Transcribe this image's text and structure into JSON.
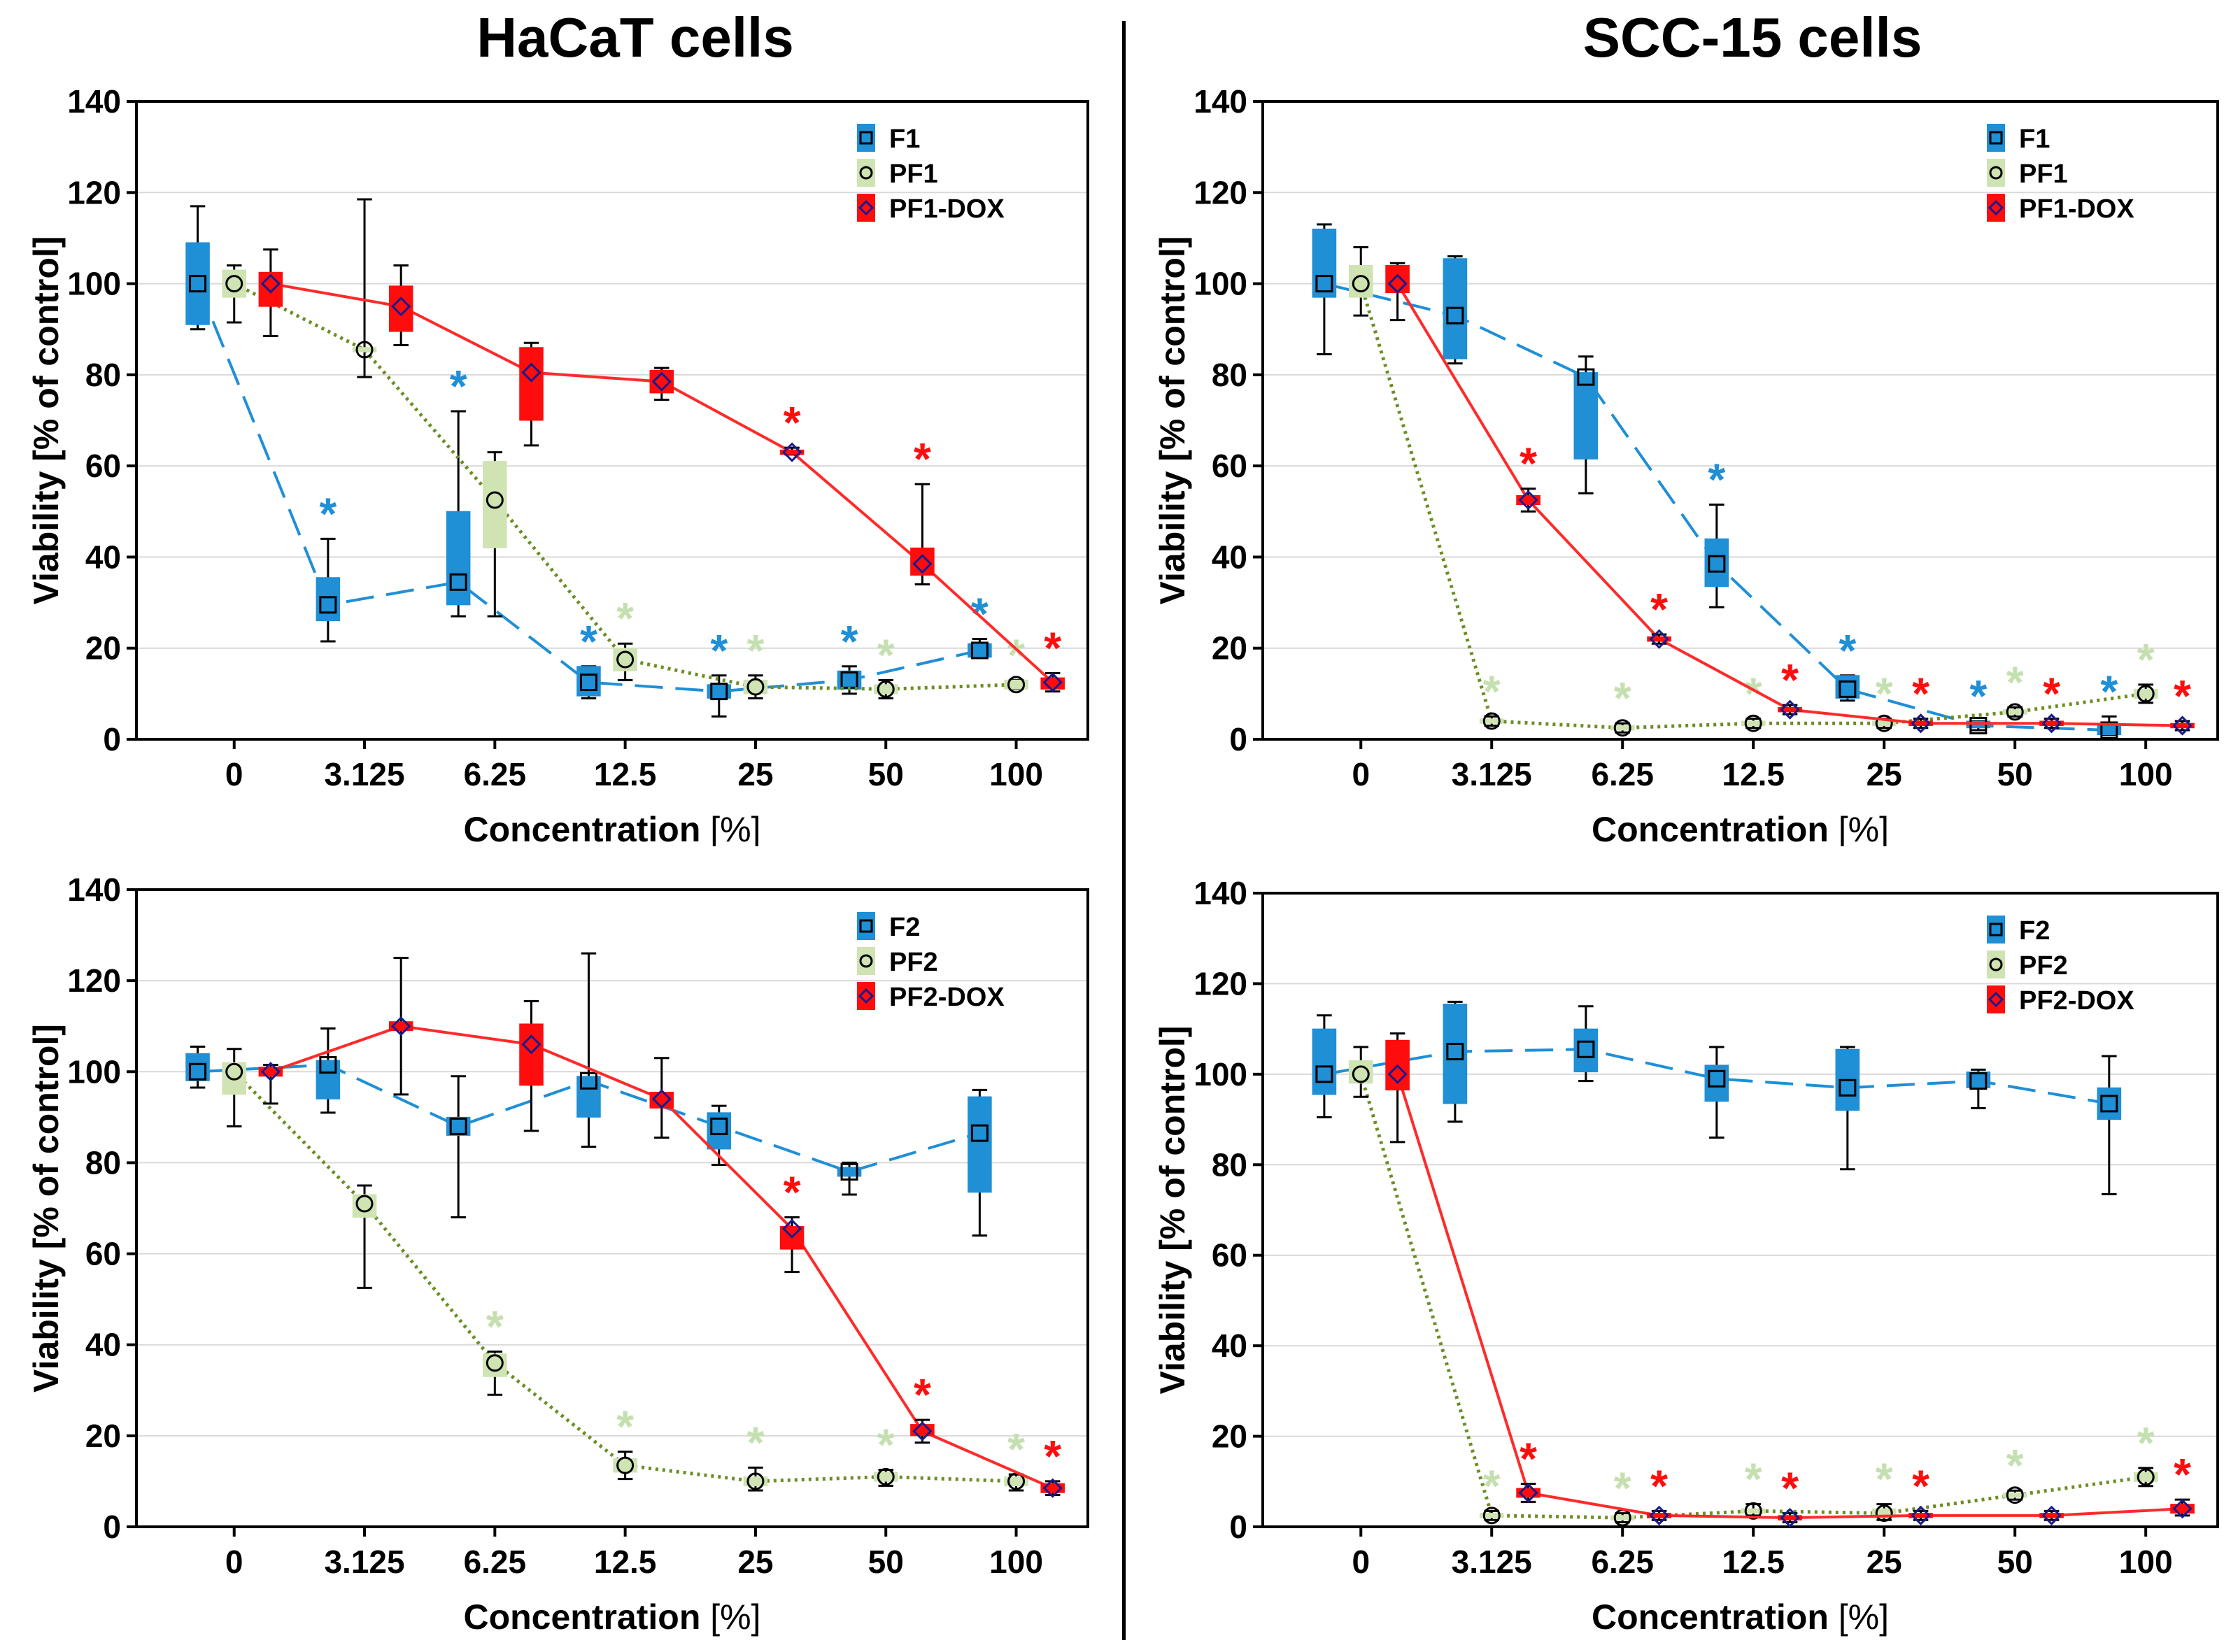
{
  "titles": {
    "left": "HaCaT cells",
    "right": "SCC-15 cells"
  },
  "colors": {
    "blue": "#1f8fd6",
    "light_green": "#cfe3b3",
    "green_marker_line": "#6b8e23",
    "red": "#ff0d0d",
    "red_line": "#ff2a2a",
    "star_green": "#c5e0b0",
    "dark_blue_marker": "#1a1a8c"
  },
  "chart_data": [
    {
      "type": "box",
      "panel": "HaCaT-top",
      "xlabel": "Concentration",
      "xunit": "[%]",
      "ylabel": "Viability [% of control]",
      "ylim": [
        0,
        140
      ],
      "yticks": [
        0,
        20,
        40,
        60,
        80,
        100,
        120,
        140
      ],
      "categories": [
        "0",
        "3.125",
        "6.25",
        "12.5",
        "25",
        "50",
        "100"
      ],
      "legend": [
        "F1",
        "PF1",
        "PF1-DOX"
      ],
      "series": [
        {
          "name": "F1",
          "style": "blue",
          "median": [
            100,
            29.5,
            34.5,
            12.5,
            10.5,
            13,
            19.5
          ],
          "q1": [
            91,
            26,
            29.5,
            9.5,
            9,
            11,
            18
          ],
          "q3": [
            109,
            35.5,
            50,
            16,
            12,
            15,
            21
          ],
          "min": [
            90,
            21.5,
            27,
            9,
            5,
            10,
            18
          ],
          "max": [
            117,
            44,
            72,
            16,
            14,
            16,
            22
          ],
          "star": [
            false,
            true,
            true,
            true,
            true,
            true,
            true
          ]
        },
        {
          "name": "PF1",
          "style": "green",
          "median": [
            100,
            85.5,
            52.5,
            17.5,
            11.5,
            11,
            12
          ],
          "q1": [
            97,
            85,
            42,
            15,
            10,
            10,
            11
          ],
          "q3": [
            103,
            86,
            61,
            20,
            13,
            12,
            13
          ],
          "min": [
            91.5,
            79.5,
            27,
            13,
            9,
            9,
            11
          ],
          "max": [
            104,
            118.5,
            63,
            21,
            14,
            13,
            13
          ],
          "star": [
            false,
            false,
            false,
            true,
            true,
            true,
            true
          ]
        },
        {
          "name": "PF1-DOX",
          "style": "red",
          "median": [
            100,
            95,
            80.5,
            78.5,
            63,
            38.5,
            12.5
          ],
          "q1": [
            95,
            89.5,
            70,
            76,
            62.5,
            36,
            11
          ],
          "q3": [
            102.5,
            99.5,
            86,
            81,
            63.5,
            42,
            13.5
          ],
          "min": [
            88.5,
            86.5,
            64.5,
            74.5,
            62.5,
            34,
            10.5
          ],
          "max": [
            107.5,
            104,
            87,
            81.5,
            64,
            56,
            14.5
          ],
          "star": [
            false,
            false,
            false,
            false,
            true,
            true,
            true
          ]
        }
      ]
    },
    {
      "type": "box",
      "panel": "SCC15-top",
      "xlabel": "Concentration",
      "xunit": "[%]",
      "ylabel": "Viability [% of control]",
      "ylim": [
        0,
        140
      ],
      "yticks": [
        0,
        20,
        40,
        60,
        80,
        100,
        120,
        140
      ],
      "categories": [
        "0",
        "3.125",
        "6.25",
        "12.5",
        "25",
        "50",
        "100"
      ],
      "legend": [
        "F1",
        "PF1",
        "PF1-DOX"
      ],
      "series": [
        {
          "name": "F1",
          "style": "blue",
          "median": [
            100,
            93,
            79.5,
            38.5,
            11,
            3,
            2
          ],
          "q1": [
            97,
            83.5,
            61.5,
            33.5,
            9,
            2.5,
            1
          ],
          "q3": [
            112,
            105.5,
            80.5,
            44,
            14,
            4,
            3
          ],
          "min": [
            84.5,
            82.5,
            54,
            29,
            8.5,
            2,
            1
          ],
          "max": [
            113,
            106,
            84,
            51.5,
            14,
            4,
            5
          ],
          "star": [
            false,
            false,
            false,
            true,
            true,
            true,
            true
          ]
        },
        {
          "name": "PF1",
          "style": "green",
          "median": [
            100,
            4,
            2.5,
            3.5,
            3.5,
            6,
            10
          ],
          "q1": [
            97,
            3.5,
            2,
            3,
            3,
            5.5,
            9
          ],
          "q3": [
            104,
            4.5,
            3,
            4,
            4,
            6.5,
            11
          ],
          "min": [
            93,
            3,
            1.5,
            2.5,
            2.5,
            5,
            8
          ],
          "max": [
            108,
            5,
            3.5,
            4.5,
            4.5,
            7,
            12
          ],
          "star": [
            false,
            true,
            true,
            true,
            true,
            true,
            true
          ]
        },
        {
          "name": "PF1-DOX",
          "style": "red",
          "median": [
            100,
            52.5,
            22,
            6.5,
            3.5,
            3.5,
            3
          ],
          "q1": [
            98,
            51.5,
            21.5,
            6,
            3,
            3,
            2.5
          ],
          "q3": [
            104,
            53.5,
            22.5,
            7,
            4,
            4,
            3.5
          ],
          "min": [
            92,
            50,
            21,
            5.5,
            2.5,
            2.5,
            2
          ],
          "max": [
            104.5,
            55,
            23,
            7.5,
            4.5,
            4.5,
            4
          ],
          "star": [
            false,
            true,
            true,
            true,
            true,
            true,
            true
          ]
        }
      ]
    },
    {
      "type": "box",
      "panel": "HaCaT-bottom",
      "xlabel": "Concentration",
      "xunit": "[%]",
      "ylabel": "Viability [% of control]",
      "ylim": [
        0,
        140
      ],
      "yticks": [
        0,
        20,
        40,
        60,
        80,
        100,
        120,
        140
      ],
      "categories": [
        "0",
        "3.125",
        "6.25",
        "12.5",
        "25",
        "50",
        "100"
      ],
      "legend": [
        "F2",
        "PF2",
        "PF2-DOX"
      ],
      "series": [
        {
          "name": "F2",
          "style": "blue",
          "median": [
            100,
            101.5,
            88,
            98,
            88,
            78,
            86.5
          ],
          "q1": [
            98,
            94,
            86,
            90,
            83,
            77,
            73.5
          ],
          "q3": [
            104,
            102.5,
            90,
            99,
            91,
            79,
            94.5
          ],
          "min": [
            96.5,
            91,
            68,
            83.5,
            79.5,
            73,
            64
          ],
          "max": [
            105.5,
            109.5,
            99,
            126,
            92.5,
            80,
            96
          ],
          "star": [
            false,
            false,
            false,
            false,
            false,
            false,
            false
          ]
        },
        {
          "name": "PF2",
          "style": "green",
          "median": [
            100,
            71,
            36,
            13.5,
            10,
            11,
            10
          ],
          "q1": [
            95,
            68,
            33,
            12,
            9,
            10,
            9
          ],
          "q3": [
            102,
            73,
            38,
            15,
            11,
            12,
            11
          ],
          "min": [
            88,
            52.5,
            29,
            10.5,
            8,
            9,
            8
          ],
          "max": [
            105,
            75,
            38.5,
            16.5,
            13,
            12.5,
            11.5
          ],
          "star": [
            false,
            false,
            true,
            true,
            true,
            true,
            true
          ]
        },
        {
          "name": "PF2-DOX",
          "style": "red",
          "median": [
            100,
            110,
            106,
            94,
            65.5,
            21,
            8.5
          ],
          "q1": [
            99,
            109,
            97,
            92,
            61,
            20,
            7.5
          ],
          "q3": [
            101,
            111,
            110.5,
            95.5,
            66,
            22.5,
            9.5
          ],
          "min": [
            93,
            95,
            87,
            85.5,
            56,
            18.5,
            7
          ],
          "max": [
            101.5,
            125,
            115.5,
            103,
            68,
            23.5,
            10
          ],
          "star": [
            false,
            false,
            false,
            false,
            true,
            true,
            true
          ]
        }
      ]
    },
    {
      "type": "box",
      "panel": "SCC15-bottom",
      "xlabel": "Concentration",
      "xunit": "[%]",
      "ylabel": "Viability [% of control]",
      "ylim": [
        0,
        140
      ],
      "yticks": [
        0,
        20,
        40,
        60,
        80,
        100,
        120,
        140
      ],
      "categories": [
        "0",
        "3.125",
        "6.25",
        "12.5",
        "25",
        "50",
        "100"
      ],
      "legend": [
        "F2",
        "PF2",
        "PF2-DOX"
      ],
      "series": [
        {
          "name": "F2",
          "style": "blue",
          "median": [
            100,
            105,
            105.5,
            99,
            97,
            98.5,
            93.5
          ],
          "q1": [
            95.5,
            93.5,
            100.5,
            94,
            92,
            97,
            90
          ],
          "q3": [
            110,
            115.5,
            110,
            102,
            105.5,
            100.5,
            97
          ],
          "min": [
            90.5,
            89.5,
            98.5,
            86,
            79,
            92.5,
            73.5
          ],
          "max": [
            113,
            116,
            115,
            106,
            106,
            101,
            104
          ],
          "star": [
            false,
            false,
            false,
            false,
            false,
            false,
            false
          ]
        },
        {
          "name": "PF2",
          "style": "green",
          "median": [
            100,
            2.5,
            2,
            3.5,
            3,
            7,
            11
          ],
          "q1": [
            98,
            2,
            1.5,
            3,
            2,
            6.5,
            10
          ],
          "q3": [
            103,
            3,
            2.5,
            4,
            4,
            7.5,
            12
          ],
          "min": [
            95,
            1.5,
            1,
            2.5,
            1.5,
            6,
            9
          ],
          "max": [
            106,
            3.5,
            3,
            5,
            5,
            8,
            13
          ],
          "star": [
            false,
            true,
            true,
            true,
            true,
            true,
            true
          ]
        },
        {
          "name": "PF2-DOX",
          "style": "red",
          "median": [
            100,
            7.5,
            2.5,
            2,
            2.5,
            2.5,
            4
          ],
          "q1": [
            96.5,
            6.5,
            2,
            1.5,
            2,
            2,
            3
          ],
          "q3": [
            107.5,
            8.5,
            3,
            2.5,
            3,
            3,
            5
          ],
          "min": [
            85,
            5.5,
            1.5,
            1,
            1.5,
            1.5,
            2.5
          ],
          "max": [
            109,
            9.5,
            3.5,
            3,
            3.5,
            3.5,
            6
          ],
          "star": [
            false,
            true,
            true,
            true,
            true,
            false,
            true
          ]
        }
      ]
    }
  ]
}
